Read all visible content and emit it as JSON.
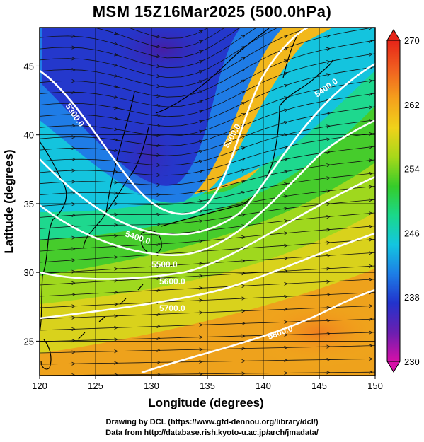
{
  "title": "MSM 15Z16Mar2025 (500.0hPa)",
  "map": {
    "x_axis": {
      "label": "Longitude (degrees)",
      "range": [
        120,
        150
      ],
      "ticks": [
        "120",
        "125",
        "130",
        "135",
        "140",
        "145",
        "150"
      ]
    },
    "y_axis": {
      "label": "Latitude  (degrees)",
      "range": [
        22.5,
        47.8
      ],
      "ticks": [
        "25",
        "30",
        "35",
        "40",
        "45"
      ]
    },
    "grid": true,
    "shaded_field": "temperature (K)",
    "contour_field": "geopotential height (m)",
    "contour_labels": [
      "5300.0",
      "5400.0",
      "5500.0",
      "5600.0",
      "5700.0",
      "5800.0",
      "5900.0"
    ],
    "vectors": "wind streamlines"
  },
  "colorbar": {
    "ticks": [
      "230",
      "238",
      "246",
      "254",
      "262",
      "270"
    ],
    "range": [
      230,
      270
    ],
    "colors": [
      "#d60fa8",
      "#6a1fb0",
      "#2233cc",
      "#1d7ee6",
      "#13c6e0",
      "#1ad88a",
      "#35cc2a",
      "#a6d81a",
      "#f0d21a",
      "#f4a01c",
      "#f06020",
      "#e62418"
    ]
  },
  "footer": {
    "line1": "Drawing by DCL (https://www.gfd-dennou.org/library/dcl/)",
    "line2": "Data from http://database.rish.kyoto-u.ac.jp/arch/jmadata/"
  }
}
